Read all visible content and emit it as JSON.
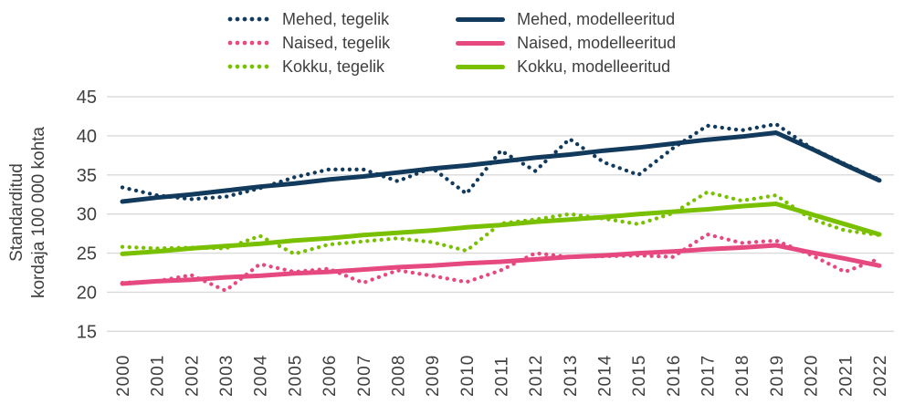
{
  "figure": {
    "background": "#ffffff",
    "text_color": "#3f3f3f",
    "grid_color": "#d9d9d9"
  },
  "chart_data": {
    "type": "line",
    "title": "",
    "xlabel": "",
    "ylabel": "Standarditud kordaja 100 000 kohta",
    "ylabel_line1": "Standarditud",
    "ylabel_line2": "kordaja 100 000 kohta",
    "categories": [
      "2000",
      "2001",
      "2002",
      "2003",
      "2004",
      "2005",
      "2006",
      "2007",
      "2008",
      "2009",
      "2010",
      "2011",
      "2012",
      "2013",
      "2014",
      "2015",
      "2016",
      "2017",
      "2018",
      "2019",
      "2020",
      "2021",
      "2022"
    ],
    "y_ticks": [
      45,
      40,
      35,
      30,
      25,
      20,
      15
    ],
    "ylim": [
      15,
      45
    ],
    "grid": "horizontal",
    "legend_position": "top",
    "colors": {
      "mehed": "#113a5c",
      "naised": "#e54980",
      "kokku": "#78c000"
    },
    "series": [
      {
        "name": "Mehed, modelleeritud",
        "style": "solid",
        "color": "#113a5c",
        "values": [
          31.6,
          32.1,
          32.5,
          33.0,
          33.5,
          33.9,
          34.4,
          34.8,
          35.3,
          35.8,
          36.2,
          36.7,
          37.2,
          37.6,
          38.1,
          38.5,
          39.0,
          39.5,
          39.9,
          40.4,
          38.4,
          36.3,
          34.3
        ]
      },
      {
        "name": "Naised, modelleeritud",
        "style": "solid",
        "color": "#e54980",
        "values": [
          21.1,
          21.4,
          21.6,
          21.9,
          22.1,
          22.4,
          22.6,
          22.9,
          23.2,
          23.4,
          23.7,
          23.9,
          24.2,
          24.5,
          24.7,
          25.0,
          25.2,
          25.5,
          25.7,
          26.0,
          25.1,
          24.3,
          23.4
        ]
      },
      {
        "name": "Kokku, modelleeritud",
        "style": "solid",
        "color": "#78c000",
        "values": [
          24.9,
          25.2,
          25.6,
          25.9,
          26.2,
          26.6,
          26.9,
          27.3,
          27.6,
          27.9,
          28.3,
          28.6,
          29.0,
          29.3,
          29.6,
          30.0,
          30.3,
          30.6,
          31.0,
          31.3,
          30.0,
          28.7,
          27.4
        ]
      },
      {
        "name": "Mehed, tegelik",
        "style": "dotted",
        "color": "#113a5c",
        "values": [
          33.4,
          32.4,
          31.9,
          32.2,
          33.3,
          34.7,
          35.7,
          35.7,
          34.2,
          35.9,
          32.6,
          38.1,
          35.5,
          39.6,
          36.6,
          35.0,
          38.4,
          41.3,
          40.7,
          41.5,
          38.5,
          36.4,
          34.4
        ]
      },
      {
        "name": "Naised, tegelik",
        "style": "dotted",
        "color": "#e54980",
        "values": [
          21.2,
          21.4,
          22.2,
          20.2,
          23.6,
          22.6,
          23.0,
          21.2,
          22.8,
          22.1,
          21.3,
          22.8,
          25.0,
          24.5,
          24.6,
          24.7,
          24.5,
          27.4,
          26.3,
          26.6,
          24.8,
          22.6,
          24.3
        ]
      },
      {
        "name": "Kokku, tegelik",
        "style": "dotted",
        "color": "#78c000",
        "values": [
          25.8,
          25.6,
          25.7,
          25.6,
          27.2,
          24.9,
          26.1,
          26.5,
          26.9,
          26.4,
          25.3,
          28.8,
          29.3,
          30.0,
          29.4,
          28.7,
          30.1,
          32.8,
          31.7,
          32.4,
          29.4,
          27.9,
          27.3
        ]
      }
    ],
    "legend_columns": [
      [
        "Mehed, tegelik",
        "Naised, tegelik",
        "Kokku, tegelik"
      ],
      [
        "Mehed, modelleeritud",
        "Naised, modelleeritud",
        "Kokku, modelleeritud"
      ]
    ]
  }
}
